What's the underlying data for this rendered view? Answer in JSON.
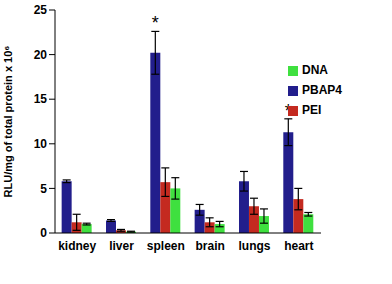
{
  "chart_data": {
    "type": "bar",
    "ylabel": "RLU/mg of total protein x 10⁶",
    "categories": [
      "kidney",
      "liver",
      "spleen",
      "brain",
      "lungs",
      "heart"
    ],
    "series": [
      {
        "name": "PBAP4",
        "color": "#221e8c",
        "values": [
          5.8,
          1.4,
          20.2,
          2.6,
          5.8,
          11.3
        ],
        "errors": [
          0.15,
          0.1,
          2.4,
          0.6,
          1.1,
          1.5
        ]
      },
      {
        "name": "PEI",
        "color": "#c42a20",
        "values": [
          1.2,
          0.3,
          5.7,
          1.2,
          3.0,
          3.8
        ],
        "errors": [
          0.9,
          0.1,
          1.6,
          0.5,
          0.9,
          1.2
        ]
      },
      {
        "name": "DNA",
        "color": "#3fe03f",
        "values": [
          1.0,
          0.15,
          5.0,
          1.0,
          1.9,
          2.1
        ],
        "errors": [
          0.1,
          0.05,
          1.2,
          0.3,
          0.8,
          0.2
        ]
      }
    ],
    "ylim": [
      0,
      25
    ],
    "yticks": [
      0,
      5,
      10,
      15,
      20,
      25
    ],
    "grid": false,
    "legend": "upper right",
    "annotations": [
      {
        "text": "*",
        "category": "spleen",
        "series": "PBAP4"
      },
      {
        "text": "*",
        "category": "heart",
        "series": "PBAP4"
      }
    ]
  }
}
